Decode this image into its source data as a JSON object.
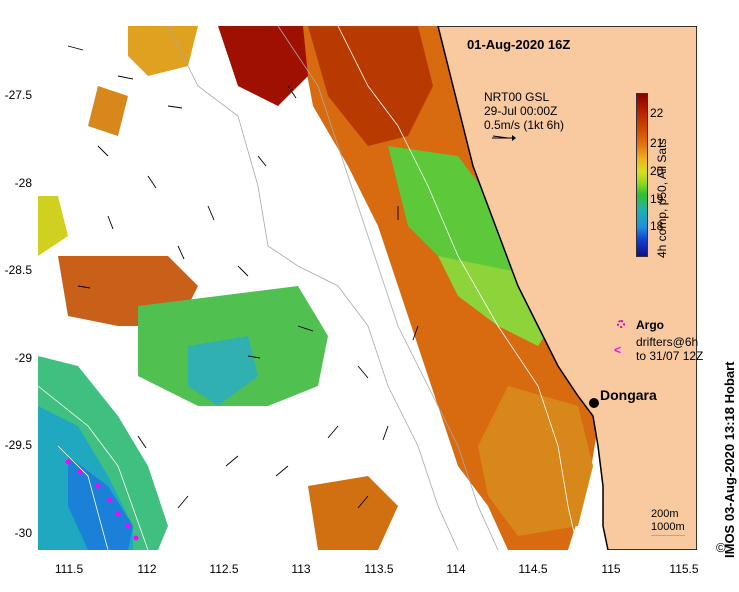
{
  "title": "01-Aug-2020 16Z",
  "nrt": {
    "line1": "NRT00 GSL",
    "line2": "29-Jul 00:00Z",
    "line3": "0.5m/s (1kt 6h)"
  },
  "axes": {
    "lat_ticks": [
      "-27.5",
      "-28",
      "-28.5",
      "-29",
      "-29.5",
      "-30"
    ],
    "lon_ticks": [
      "111.5",
      "112",
      "112.5",
      "113",
      "113.5",
      "114",
      "114.5",
      "115",
      "115.5"
    ]
  },
  "colorbar": {
    "ticks": [
      "22",
      "21",
      "20",
      "19",
      "18"
    ],
    "label": "4h comp, p50, All Sats"
  },
  "legend": {
    "argo": "Argo",
    "drifters_line1": "drifters@6h",
    "drifters_line2": "to 31/07 12Z"
  },
  "place": {
    "name": "Dongara"
  },
  "depth_legend": {
    "d1": "200m",
    "d2": "1000m"
  },
  "credit": "IMOS 03-Aug-2020 13:18 Hobart",
  "copyright": "©",
  "colors": {
    "land": "#f9c9a0",
    "coast": "#000000"
  },
  "icons": {
    "argo": "argo-float-icon",
    "drifter": "drifter-arrow-icon",
    "place": "town-dot-icon"
  }
}
